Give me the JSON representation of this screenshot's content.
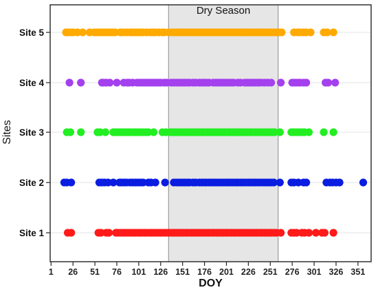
{
  "chart_data": {
    "type": "scatter",
    "title": "",
    "xlabel": "DOY",
    "ylabel": "Sites",
    "xlim": [
      0,
      366
    ],
    "x_ticks": [
      1,
      26,
      51,
      76,
      101,
      126,
      151,
      176,
      201,
      226,
      251,
      276,
      301,
      326,
      351
    ],
    "categories": [
      "Site 1",
      "Site 2",
      "Site 3",
      "Site 4",
      "Site 5"
    ],
    "grid": "horizontal",
    "shaded_region": {
      "label": "Dry Season",
      "x_start": 135,
      "x_end": 260,
      "color": "#e6e6e6"
    },
    "series": [
      {
        "category": "Site 1",
        "color": "#ff1a1a",
        "x": [
          20,
          24,
          55,
          58,
          64,
          67,
          75,
          77,
          80,
          83,
          86,
          89,
          92,
          95,
          97,
          100,
          103,
          105,
          108,
          111,
          114,
          116,
          119,
          122,
          125,
          127,
          130,
          132,
          135,
          137,
          140,
          142,
          145,
          147,
          150,
          152,
          155,
          157,
          160,
          162,
          165,
          167,
          170,
          172,
          175,
          177,
          180,
          182,
          185,
          187,
          190,
          192,
          195,
          197,
          200,
          202,
          205,
          207,
          210,
          212,
          215,
          217,
          220,
          222,
          225,
          227,
          230,
          232,
          235,
          237,
          240,
          242,
          245,
          247,
          250,
          252,
          255,
          258,
          263,
          275,
          278,
          281,
          287,
          290,
          295,
          303,
          310,
          313,
          323
        ]
      },
      {
        "category": "Site 2",
        "color": "#0a1de0",
        "x": [
          16,
          19,
          24,
          56,
          59,
          62,
          66,
          72,
          79,
          81,
          84,
          87,
          91,
          94,
          97,
          100,
          103,
          106,
          112,
          115,
          120,
          131,
          141,
          144,
          147,
          150,
          153,
          156,
          159,
          163,
          166,
          170,
          173,
          176,
          178,
          181,
          184,
          186,
          189,
          192,
          195,
          198,
          201,
          203,
          206,
          209,
          212,
          214,
          217,
          220,
          223,
          226,
          229,
          232,
          234,
          237,
          240,
          243,
          246,
          249,
          252,
          255,
          262,
          275,
          278,
          283,
          289,
          292,
          315,
          319,
          322,
          326,
          330,
          357
        ]
      },
      {
        "category": "Site 3",
        "color": "#22ee22",
        "x": [
          19,
          23,
          35,
          54,
          57,
          63,
          72,
          74,
          77,
          80,
          83,
          86,
          89,
          91,
          94,
          97,
          100,
          103,
          106,
          109,
          112,
          118,
          128,
          132,
          137,
          140,
          142,
          145,
          148,
          150,
          153,
          155,
          158,
          160,
          163,
          165,
          168,
          170,
          173,
          175,
          178,
          180,
          183,
          185,
          188,
          190,
          193,
          195,
          198,
          200,
          203,
          205,
          208,
          210,
          213,
          215,
          218,
          220,
          223,
          225,
          228,
          230,
          233,
          235,
          238,
          240,
          243,
          245,
          248,
          250,
          253,
          256,
          262,
          275,
          278,
          281,
          284,
          287,
          290,
          295,
          312,
          323
        ]
      },
      {
        "category": "Site 4",
        "color": "#a440ee",
        "x": [
          22,
          35,
          59,
          61,
          64,
          68,
          76,
          84,
          88,
          90,
          94,
          99,
          102,
          105,
          108,
          111,
          114,
          117,
          120,
          123,
          126,
          130,
          133,
          138,
          141,
          144,
          147,
          150,
          153,
          156,
          159,
          163,
          166,
          170,
          173,
          176,
          178,
          181,
          186,
          189,
          191,
          194,
          197,
          200,
          203,
          206,
          209,
          214,
          217,
          222,
          225,
          228,
          231,
          234,
          237,
          240,
          244,
          248,
          252,
          263,
          276,
          279,
          282,
          285,
          289,
          292,
          314,
          317,
          325
        ]
      },
      {
        "category": "Site 5",
        "color": "#ffaa00",
        "x": [
          18,
          20,
          23,
          26,
          31,
          37,
          45,
          50,
          53,
          56,
          59,
          62,
          65,
          68,
          71,
          74,
          80,
          83,
          87,
          91,
          94,
          97,
          100,
          103,
          106,
          110,
          114,
          117,
          120,
          124,
          128,
          130,
          135,
          139,
          142,
          145,
          147,
          150,
          153,
          156,
          159,
          162,
          165,
          168,
          171,
          174,
          177,
          180,
          183,
          186,
          189,
          192,
          195,
          198,
          201,
          204,
          207,
          210,
          213,
          216,
          219,
          222,
          225,
          228,
          231,
          234,
          237,
          240,
          243,
          246,
          249,
          252,
          255,
          258,
          261,
          264,
          278,
          282,
          285,
          289,
          292,
          297,
          312,
          316,
          323
        ]
      }
    ]
  }
}
